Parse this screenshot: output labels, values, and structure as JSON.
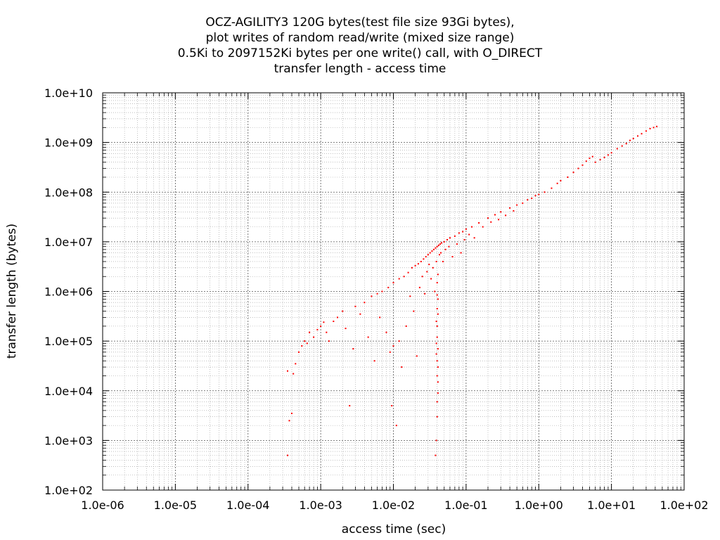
{
  "chart_data": {
    "type": "scatter",
    "title_lines": [
      "OCZ-AGILITY3 120G bytes(test file size 93Gi bytes),",
      "plot writes of random read/write (mixed size range)",
      "0.5Ki to 2097152Ki bytes per one write() call, with O_DIRECT",
      "transfer length - access time"
    ],
    "xlabel": "access time (sec)",
    "ylabel": "transfer length (bytes)",
    "xscale": "log",
    "yscale": "log",
    "xlim": [
      1e-06,
      100
    ],
    "ylim": [
      100,
      10000000000.0
    ],
    "x_tick_labels": [
      "1.0e-06",
      "1.0e-05",
      "1.0e-04",
      "1.0e-03",
      "1.0e-02",
      "1.0e-01",
      "1.0e+00",
      "1.0e+01",
      "1.0e+02"
    ],
    "y_tick_labels": [
      "1.0e+02",
      "1.0e+03",
      "1.0e+04",
      "1.0e+05",
      "1.0e+06",
      "1.0e+07",
      "1.0e+08",
      "1.0e+09",
      "1.0e+10"
    ],
    "grid": "major and minor (dotted)",
    "point_color": "#ff0000",
    "series": [
      {
        "values": [
          [
            0.00035,
            500
          ],
          [
            0.00037,
            2500
          ],
          [
            0.0004,
            3500
          ],
          [
            0.00035,
            25000
          ],
          [
            0.00042,
            22000
          ],
          [
            0.00045,
            35000
          ],
          [
            0.0005,
            60000
          ],
          [
            0.00055,
            80000
          ],
          [
            0.0006,
            100000
          ],
          [
            0.00065,
            90000
          ],
          [
            0.0007,
            150000
          ],
          [
            0.0008,
            120000
          ],
          [
            0.0009,
            170000
          ],
          [
            0.001,
            200000
          ],
          [
            0.0011,
            240000
          ],
          [
            0.0012,
            150000
          ],
          [
            0.0013,
            100000
          ],
          [
            0.0015,
            250000
          ],
          [
            0.0017,
            300000
          ],
          [
            0.002,
            400000
          ],
          [
            0.0022,
            180000
          ],
          [
            0.0025,
            5000
          ],
          [
            0.0028,
            70000
          ],
          [
            0.003,
            500000
          ],
          [
            0.0035,
            350000
          ],
          [
            0.004,
            600000
          ],
          [
            0.0045,
            120000
          ],
          [
            0.005,
            800000
          ],
          [
            0.0055,
            40000
          ],
          [
            0.006,
            900000
          ],
          [
            0.0065,
            300000
          ],
          [
            0.007,
            1000000
          ],
          [
            0.008,
            150000
          ],
          [
            0.0085,
            1200000
          ],
          [
            0.009,
            60000
          ],
          [
            0.0095,
            5000
          ],
          [
            0.01,
            1500000
          ],
          [
            0.01,
            80000
          ],
          [
            0.011,
            2000
          ],
          [
            0.012,
            1800000
          ],
          [
            0.012,
            100000
          ],
          [
            0.013,
            30000
          ],
          [
            0.014,
            2000000
          ],
          [
            0.015,
            200000
          ],
          [
            0.016,
            2400000
          ],
          [
            0.017,
            800000
          ],
          [
            0.018,
            3000000
          ],
          [
            0.019,
            400000
          ],
          [
            0.02,
            3300000
          ],
          [
            0.021,
            50000
          ],
          [
            0.022,
            3600000
          ],
          [
            0.023,
            1200000
          ],
          [
            0.024,
            4000000
          ],
          [
            0.025,
            2000000
          ],
          [
            0.026,
            4500000
          ],
          [
            0.027,
            900000
          ],
          [
            0.028,
            5000000
          ],
          [
            0.029,
            2500000
          ],
          [
            0.03,
            5500000
          ],
          [
            0.031,
            3500000
          ],
          [
            0.032,
            6000000
          ],
          [
            0.033,
            1800000
          ],
          [
            0.034,
            6500000
          ],
          [
            0.035,
            3000000
          ],
          [
            0.036,
            7000000
          ],
          [
            0.037,
            1000000
          ],
          [
            0.038,
            7500000
          ],
          [
            0.039,
            4000000
          ],
          [
            0.04,
            8000000
          ],
          [
            0.041,
            2200000
          ],
          [
            0.042,
            8500000
          ],
          [
            0.043,
            5500000
          ],
          [
            0.044,
            9000000
          ],
          [
            0.045,
            6000000
          ],
          [
            0.046,
            9500000
          ],
          [
            0.048,
            4000000
          ],
          [
            0.05,
            10000000
          ],
          [
            0.052,
            7000000
          ],
          [
            0.055,
            11000000
          ],
          [
            0.058,
            8000000
          ],
          [
            0.06,
            12000000
          ],
          [
            0.065,
            5000000
          ],
          [
            0.07,
            13000000
          ],
          [
            0.075,
            9000000
          ],
          [
            0.08,
            15000000
          ],
          [
            0.085,
            6000000
          ],
          [
            0.09,
            16000000
          ],
          [
            0.095,
            11000000
          ],
          [
            0.1,
            18000000
          ],
          [
            0.11,
            14000000
          ],
          [
            0.12,
            20000000
          ],
          [
            0.13,
            12000000
          ],
          [
            0.15,
            24000000
          ],
          [
            0.17,
            20000000
          ],
          [
            0.2,
            30000000
          ],
          [
            0.22,
            25000000
          ],
          [
            0.25,
            35000000
          ],
          [
            0.28,
            28000000
          ],
          [
            0.3,
            40000000
          ],
          [
            0.35,
            34000000
          ],
          [
            0.4,
            48000000
          ],
          [
            0.45,
            42000000
          ],
          [
            0.5,
            55000000
          ],
          [
            0.6,
            60000000
          ],
          [
            0.7,
            70000000
          ],
          [
            0.8,
            75000000
          ],
          [
            0.9,
            85000000
          ],
          [
            1.0,
            90000000
          ],
          [
            1.2,
            100000000
          ],
          [
            1.5,
            120000000
          ],
          [
            1.8,
            150000000
          ],
          [
            2.0,
            170000000
          ],
          [
            2.5,
            200000000
          ],
          [
            3.0,
            250000000
          ],
          [
            3.5,
            300000000
          ],
          [
            4.0,
            350000000
          ],
          [
            4.5,
            420000000
          ],
          [
            5.0,
            480000000
          ],
          [
            5.5,
            520000000
          ],
          [
            6.0,
            400000000
          ],
          [
            7.0,
            450000000
          ],
          [
            8.0,
            500000000
          ],
          [
            9.0,
            560000000
          ],
          [
            10.0,
            620000000
          ],
          [
            12.0,
            750000000
          ],
          [
            14.0,
            850000000
          ],
          [
            16.0,
            950000000
          ],
          [
            18.0,
            1100000000
          ],
          [
            20.0,
            1200000000
          ],
          [
            23.0,
            1350000000
          ],
          [
            26.0,
            1500000000
          ],
          [
            30.0,
            1700000000
          ],
          [
            34.0,
            1900000000
          ],
          [
            38.0,
            2000000000
          ],
          [
            42.0,
            2100000000
          ],
          [
            0.038,
            500
          ],
          [
            0.039,
            1000
          ],
          [
            0.04,
            3000
          ],
          [
            0.04,
            6000
          ],
          [
            0.041,
            15000
          ],
          [
            0.04,
            40000
          ],
          [
            0.041,
            70000
          ],
          [
            0.04,
            120000
          ],
          [
            0.039,
            250000
          ],
          [
            0.04,
            450000
          ],
          [
            0.041,
            700000
          ],
          [
            0.04,
            1500000
          ],
          [
            0.039,
            90000
          ],
          [
            0.04,
            20000
          ],
          [
            0.041,
            9000
          ],
          [
            0.04,
            200000
          ],
          [
            0.041,
            30000
          ],
          [
            0.039,
            55000
          ],
          [
            0.04,
            850000
          ],
          [
            0.041,
            350000
          ]
        ]
      }
    ]
  }
}
